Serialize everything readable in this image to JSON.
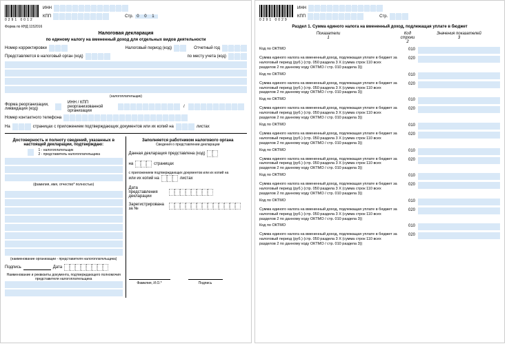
{
  "colors": {
    "field_bg": "#d8e8f7",
    "text": "#000000",
    "border": "#cccccc"
  },
  "page1": {
    "barcode_num": "0291   0012",
    "inn_label": "ИНН",
    "kpp_label": "КПП",
    "page_label": "Стр.",
    "page_value": "0 0 1",
    "form_code": "Форма по КНД 1152016",
    "title1": "Налоговая декларация",
    "title2": "по единому налогу на вмененный доход для отдельных видов деятельности",
    "corr_num": "Номер корректировки",
    "tax_period": "Налоговый период (код)",
    "report_year": "Отчетный год",
    "submit_to": "Представляется в налоговый орган (код)",
    "place_code": "по месту учета (код)",
    "taxpayer_label": "(налогоплательщик)",
    "reorg_form": "Форма реорганизации, ликвидация (код)",
    "reorg_inn": "ИНН / КПП реорганизованной организации",
    "phone": "Номер контактного телефона",
    "pages_on": "На",
    "pages_text": "страницах с приложением подтверждающих документов или их копий на",
    "sheets": "листах",
    "confirm_title": "Достоверность и полноту сведений, указанных в настоящей декларации, подтверждаю:",
    "confirm_opt1": "1 - налогоплательщик",
    "confirm_opt2": "2 - представитель налогоплательщика",
    "fio_note": "(фамилия, имя, отчество* полностью)",
    "org_note": "(наименование организации - представителя налогоплательщика)",
    "signature": "Подпись",
    "date": "Дата",
    "doc_note": "Наименование и реквизиты документа, подтверждающего полномочия представителя налогоплательщика",
    "right_title": "Заполняется работником налогового органа",
    "right_sub": "Сведения о представлении декларации",
    "decl_submitted": "Данная декларация представлена (код)",
    "on_label": "на",
    "pages_label2": "страницах",
    "attach_text": "с приложением подтверждающих документов или их копий на",
    "sheets2": "листах",
    "submit_date": "Дата представления декларации",
    "reg_num": "Зарегистрирована за №",
    "fio_io": "Фамилия, И.О.*",
    "sig2": "Подпись"
  },
  "page2": {
    "barcode_num": "0291   0029",
    "inn_label": "ИНН",
    "kpp_label": "КПП",
    "page_label": "Стр.",
    "section_title": "Раздел 1. Сумма единого налога на вмененный доход, подлежащая уплате в бюджет",
    "head_indicators": "Показатели",
    "head_code": "Код строки",
    "head_values": "Значения показателей",
    "head_1": "1",
    "head_2": "2",
    "head_3": "3",
    "oktmo_label": "Код по ОКТМО",
    "tax_sum_label": "Сумма единого налога на вмененный доход, подлежащая уплате в бюджет за налоговый период (руб.) (стр. 050 раздела 3 X (сумма строк 110 всех разделов 2 по данному коду ОКТМО / стр. 010 раздела 3))",
    "code_010": "010",
    "code_020": "020",
    "repeat_count": 8
  }
}
